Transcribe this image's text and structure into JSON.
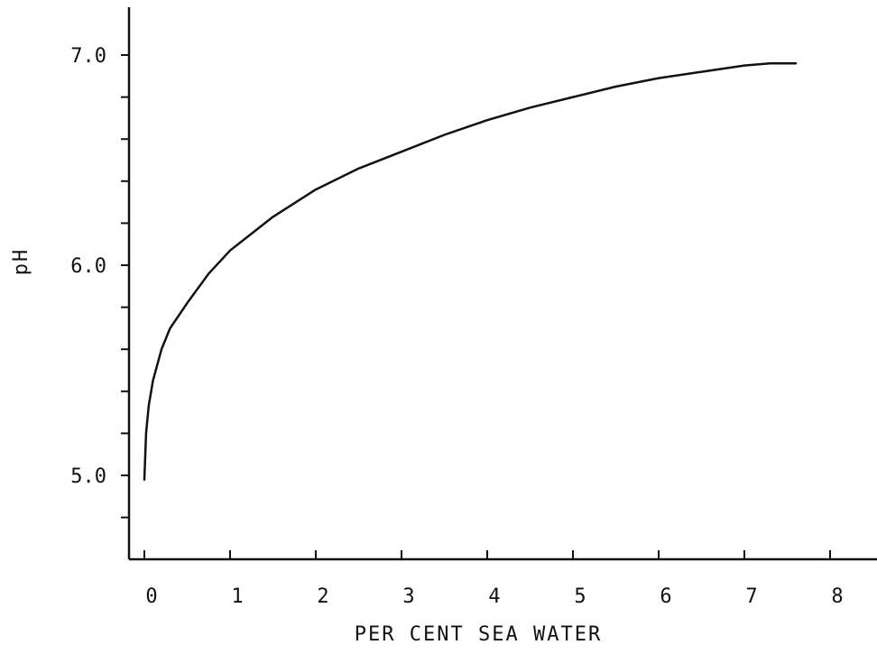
{
  "chart_data": {
    "type": "line",
    "title": "",
    "xlabel": "PER CENT SEA WATER",
    "ylabel": "pH",
    "xlim": [
      0,
      8
    ],
    "ylim": [
      4.6,
      7.0
    ],
    "x_ticks": [
      "0",
      "1",
      "2",
      "3",
      "4",
      "5",
      "6",
      "7",
      "8"
    ],
    "y_ticks": [
      "5.0",
      "6.0",
      "7.0"
    ],
    "y_minor_step": 0.2,
    "grid": false,
    "line_color": "#111111",
    "series": [
      {
        "x": [
          0.0,
          0.02,
          0.05,
          0.1,
          0.2,
          0.3,
          0.5,
          0.75,
          1.0,
          1.5,
          2.0,
          2.5,
          3.0,
          3.5,
          4.0,
          4.5,
          5.0,
          5.5,
          6.0,
          6.5,
          7.0,
          7.3,
          7.6
        ],
        "values": [
          4.98,
          5.2,
          5.33,
          5.45,
          5.6,
          5.7,
          5.82,
          5.96,
          6.07,
          6.23,
          6.36,
          6.46,
          6.54,
          6.62,
          6.69,
          6.75,
          6.8,
          6.85,
          6.89,
          6.92,
          6.95,
          6.96,
          6.96
        ]
      }
    ]
  }
}
